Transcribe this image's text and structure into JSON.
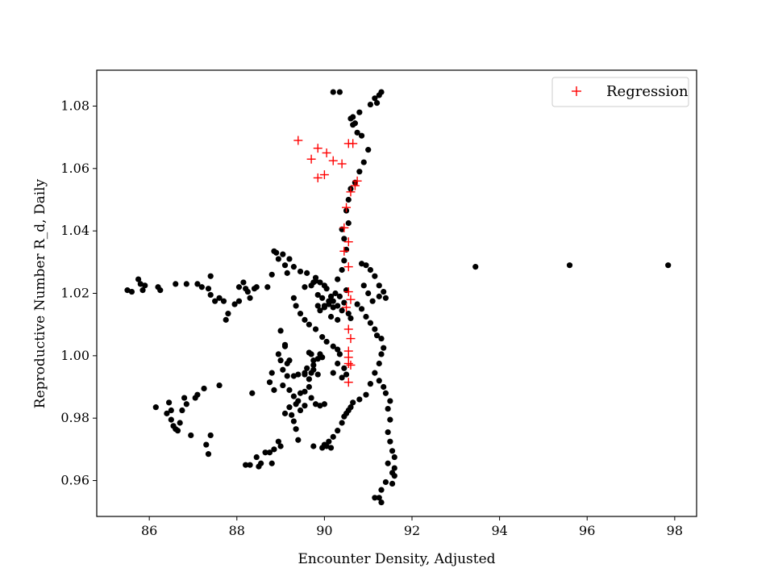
{
  "chart_data": {
    "type": "scatter",
    "xlabel": "Encounter Density, Adjusted",
    "ylabel": "Reproductive Number R_d, Daily",
    "xlim": [
      84.8,
      98.5
    ],
    "ylim": [
      0.9485,
      1.0915
    ],
    "xticks": [
      86,
      88,
      90,
      92,
      94,
      96,
      98
    ],
    "yticks": [
      0.96,
      0.98,
      1.0,
      1.02,
      1.04,
      1.06,
      1.08
    ],
    "grid": false,
    "legend": {
      "placement": "top-right",
      "entries": [
        "Regression"
      ]
    },
    "colors": {
      "data": "#000000",
      "regression": "#ff0000"
    },
    "series": [
      {
        "marker": "dot",
        "color": "#000000",
        "points": [
          [
            85.5,
            1.021
          ],
          [
            85.6,
            1.0205
          ],
          [
            85.75,
            1.0245
          ],
          [
            85.8,
            1.023
          ],
          [
            85.85,
            1.021
          ],
          [
            85.9,
            1.0225
          ],
          [
            86.2,
            1.022
          ],
          [
            86.25,
            1.021
          ],
          [
            86.15,
            0.9835
          ],
          [
            86.4,
            0.9815
          ],
          [
            86.45,
            0.985
          ],
          [
            86.5,
            0.9825
          ],
          [
            86.5,
            0.9795
          ],
          [
            86.55,
            0.9775
          ],
          [
            86.6,
            0.9765
          ],
          [
            86.65,
            0.976
          ],
          [
            86.7,
            0.9785
          ],
          [
            86.75,
            0.9825
          ],
          [
            86.8,
            0.9865
          ],
          [
            86.85,
            0.9845
          ],
          [
            86.95,
            0.9745
          ],
          [
            87.05,
            0.9865
          ],
          [
            87.1,
            0.9875
          ],
          [
            87.25,
            0.9895
          ],
          [
            87.3,
            0.9715
          ],
          [
            87.35,
            0.9685
          ],
          [
            87.4,
            0.9745
          ],
          [
            87.6,
            0.9905
          ],
          [
            86.6,
            1.023
          ],
          [
            86.85,
            1.023
          ],
          [
            87.1,
            1.023
          ],
          [
            87.2,
            1.022
          ],
          [
            87.35,
            1.0215
          ],
          [
            87.4,
            1.0195
          ],
          [
            87.5,
            1.0175
          ],
          [
            87.6,
            1.0185
          ],
          [
            87.7,
            1.0175
          ],
          [
            87.8,
            1.0135
          ],
          [
            87.75,
            1.0115
          ],
          [
            87.95,
            1.0165
          ],
          [
            88.05,
            1.0175
          ],
          [
            88.05,
            1.022
          ],
          [
            88.15,
            1.0235
          ],
          [
            88.2,
            1.0215
          ],
          [
            88.25,
            1.0205
          ],
          [
            88.3,
            1.0185
          ],
          [
            88.4,
            1.0215
          ],
          [
            88.45,
            1.022
          ],
          [
            87.4,
            1.0255
          ],
          [
            88.2,
            0.965
          ],
          [
            88.3,
            0.965
          ],
          [
            88.35,
            0.988
          ],
          [
            88.45,
            0.9675
          ],
          [
            88.5,
            0.9645
          ],
          [
            88.55,
            0.9655
          ],
          [
            88.65,
            0.969
          ],
          [
            88.75,
            0.969
          ],
          [
            88.8,
            0.9655
          ],
          [
            88.85,
            0.97
          ],
          [
            88.95,
            0.9725
          ],
          [
            89.0,
            0.971
          ],
          [
            88.7,
            1.022
          ],
          [
            88.8,
            1.026
          ],
          [
            88.85,
            1.0335
          ],
          [
            88.9,
            1.033
          ],
          [
            88.95,
            1.031
          ],
          [
            89.05,
            1.0325
          ],
          [
            89.1,
            1.029
          ],
          [
            89.15,
            1.0265
          ],
          [
            89.2,
            1.031
          ],
          [
            89.3,
            1.0285
          ],
          [
            89.45,
            1.027
          ],
          [
            89.6,
            1.0265
          ],
          [
            89.8,
            1.025
          ],
          [
            89.55,
            1.022
          ],
          [
            89.7,
            1.0225
          ],
          [
            89.75,
            1.0235
          ],
          [
            89.8,
            1.024
          ],
          [
            89.9,
            1.0235
          ],
          [
            90.0,
            1.0225
          ],
          [
            90.05,
            1.0215
          ],
          [
            89.85,
            1.0195
          ],
          [
            89.95,
            1.0185
          ],
          [
            89.85,
            1.016
          ],
          [
            90.0,
            1.016
          ],
          [
            90.1,
            1.0165
          ],
          [
            90.2,
            1.0175
          ],
          [
            89.3,
            1.0185
          ],
          [
            89.35,
            1.016
          ],
          [
            89.45,
            1.0135
          ],
          [
            89.55,
            1.0115
          ],
          [
            89.65,
            1.01
          ],
          [
            89.8,
            1.0085
          ],
          [
            89.95,
            1.006
          ],
          [
            90.05,
            1.0045
          ],
          [
            90.2,
            1.003
          ],
          [
            90.3,
            1.002
          ],
          [
            89.0,
            1.008
          ],
          [
            89.1,
            1.0035
          ],
          [
            89.2,
            0.9985
          ],
          [
            89.15,
            0.9975
          ],
          [
            89.05,
            0.9955
          ],
          [
            89.15,
            0.9935
          ],
          [
            89.3,
            0.9935
          ],
          [
            89.4,
            0.994
          ],
          [
            89.55,
            0.994
          ],
          [
            89.7,
            0.9945
          ],
          [
            89.85,
            0.994
          ],
          [
            89.75,
            0.9985
          ],
          [
            89.65,
            1.001
          ],
          [
            89.7,
            1.0005
          ],
          [
            89.75,
            0.997
          ],
          [
            89.85,
            0.999
          ],
          [
            89.9,
            1.0005
          ],
          [
            89.95,
            0.9995
          ],
          [
            89.75,
            0.9955
          ],
          [
            89.6,
            0.996
          ],
          [
            89.55,
            0.9945
          ],
          [
            89.65,
            0.9925
          ],
          [
            89.05,
            0.9905
          ],
          [
            89.2,
            0.989
          ],
          [
            89.3,
            0.987
          ],
          [
            89.35,
            0.9845
          ],
          [
            89.4,
            0.9855
          ],
          [
            89.45,
            0.988
          ],
          [
            89.55,
            0.9885
          ],
          [
            89.65,
            0.99
          ],
          [
            89.7,
            0.9865
          ],
          [
            89.8,
            0.9845
          ],
          [
            89.9,
            0.984
          ],
          [
            90.0,
            0.9845
          ],
          [
            89.2,
            0.9835
          ],
          [
            89.1,
            0.9815
          ],
          [
            89.25,
            0.981
          ],
          [
            89.3,
            0.979
          ],
          [
            89.35,
            0.9765
          ],
          [
            89.4,
            0.973
          ],
          [
            89.55,
            0.984
          ],
          [
            89.45,
            0.9825
          ],
          [
            88.8,
            0.9945
          ],
          [
            88.75,
            0.9915
          ],
          [
            88.85,
            0.989
          ],
          [
            89.0,
            0.9985
          ],
          [
            88.95,
            1.0005
          ],
          [
            89.1,
            1.003
          ],
          [
            90.2,
            0.9945
          ],
          [
            90.3,
            0.9975
          ],
          [
            90.35,
            1.0005
          ],
          [
            90.45,
            0.996
          ],
          [
            90.5,
            0.994
          ],
          [
            90.4,
            0.993
          ],
          [
            89.75,
            0.971
          ],
          [
            89.95,
            0.9705
          ],
          [
            90.0,
            0.9715
          ],
          [
            90.05,
            0.971
          ],
          [
            90.1,
            0.9725
          ],
          [
            90.15,
            0.9705
          ],
          [
            90.2,
            0.974
          ],
          [
            90.3,
            0.976
          ],
          [
            90.4,
            0.9785
          ],
          [
            90.45,
            0.9805
          ],
          [
            90.5,
            0.9815
          ],
          [
            90.55,
            0.9825
          ],
          [
            90.6,
            0.9835
          ],
          [
            90.65,
            0.985
          ],
          [
            90.8,
            0.986
          ],
          [
            90.95,
            0.9875
          ],
          [
            91.05,
            0.991
          ],
          [
            91.15,
            0.9945
          ],
          [
            91.25,
            0.9975
          ],
          [
            91.3,
            1.0005
          ],
          [
            91.35,
            1.0025
          ],
          [
            91.25,
            0.992
          ],
          [
            91.35,
            0.99
          ],
          [
            91.4,
            0.988
          ],
          [
            91.5,
            0.9855
          ],
          [
            91.45,
            0.983
          ],
          [
            91.5,
            0.9795
          ],
          [
            91.45,
            0.9755
          ],
          [
            91.5,
            0.9725
          ],
          [
            91.55,
            0.9695
          ],
          [
            91.6,
            0.9675
          ],
          [
            91.45,
            0.9655
          ],
          [
            91.55,
            0.9625
          ],
          [
            91.4,
            0.9595
          ],
          [
            91.3,
            0.957
          ],
          [
            91.25,
            0.9545
          ],
          [
            91.3,
            0.953
          ],
          [
            91.15,
            0.9545
          ],
          [
            91.6,
            0.964
          ],
          [
            91.6,
            0.9615
          ],
          [
            91.55,
            0.959
          ],
          [
            90.55,
            1.0135
          ],
          [
            90.6,
            1.012
          ],
          [
            90.4,
            1.0145
          ],
          [
            90.3,
            1.016
          ],
          [
            90.2,
            1.0155
          ],
          [
            90.1,
            1.0175
          ],
          [
            90.15,
            1.019
          ],
          [
            90.25,
            1.02
          ],
          [
            90.35,
            1.019
          ],
          [
            90.45,
            1.017
          ],
          [
            90.5,
            1.021
          ],
          [
            90.3,
            1.0245
          ],
          [
            90.4,
            1.0275
          ],
          [
            90.45,
            1.0305
          ],
          [
            90.5,
            1.034
          ],
          [
            90.45,
            1.0375
          ],
          [
            90.4,
            1.0405
          ],
          [
            90.55,
            1.0425
          ],
          [
            90.5,
            1.0465
          ],
          [
            90.55,
            1.05
          ],
          [
            90.6,
            1.0535
          ],
          [
            90.7,
            1.0555
          ],
          [
            90.8,
            1.059
          ],
          [
            90.9,
            1.062
          ],
          [
            91.0,
            1.066
          ],
          [
            90.75,
            1.0715
          ],
          [
            90.65,
            1.074
          ],
          [
            90.6,
            1.076
          ],
          [
            90.65,
            1.0765
          ],
          [
            90.7,
            1.0745
          ],
          [
            90.8,
            1.078
          ],
          [
            90.85,
            1.0705
          ],
          [
            91.15,
            1.0825
          ],
          [
            91.2,
            1.081
          ],
          [
            91.25,
            1.0835
          ],
          [
            91.3,
            1.0845
          ],
          [
            91.05,
            1.0805
          ],
          [
            90.2,
            1.0845
          ],
          [
            90.35,
            1.0845
          ],
          [
            90.85,
            1.0295
          ],
          [
            90.95,
            1.029
          ],
          [
            91.05,
            1.0275
          ],
          [
            91.15,
            1.0255
          ],
          [
            91.25,
            1.0225
          ],
          [
            91.35,
            1.0205
          ],
          [
            91.4,
            1.0185
          ],
          [
            91.25,
            1.019
          ],
          [
            91.1,
            1.0175
          ],
          [
            91.0,
            1.02
          ],
          [
            90.9,
            1.0225
          ],
          [
            90.75,
            1.0165
          ],
          [
            90.85,
            1.015
          ],
          [
            90.95,
            1.0125
          ],
          [
            91.05,
            1.0105
          ],
          [
            91.15,
            1.0085
          ],
          [
            91.2,
            1.0065
          ],
          [
            91.3,
            1.0055
          ],
          [
            90.3,
            1.0115
          ],
          [
            90.15,
            1.0125
          ],
          [
            90.0,
            1.0155
          ],
          [
            89.9,
            1.0145
          ],
          [
            93.45,
            1.0285
          ],
          [
            95.6,
            1.029
          ],
          [
            97.85,
            1.029
          ]
        ]
      },
      {
        "name": "Regression",
        "marker": "plus",
        "color": "#ff0000",
        "points": [
          [
            89.4,
            1.069
          ],
          [
            89.7,
            1.063
          ],
          [
            89.85,
            1.0665
          ],
          [
            90.05,
            1.065
          ],
          [
            90.2,
            1.0625
          ],
          [
            90.4,
            1.0615
          ],
          [
            89.85,
            1.057
          ],
          [
            90.0,
            1.058
          ],
          [
            90.55,
            1.068
          ],
          [
            90.65,
            1.068
          ],
          [
            90.75,
            1.056
          ],
          [
            90.7,
            1.0545
          ],
          [
            90.6,
            1.0525
          ],
          [
            90.5,
            1.0475
          ],
          [
            90.45,
            1.041
          ],
          [
            90.55,
            1.0365
          ],
          [
            90.45,
            1.0335
          ],
          [
            90.55,
            1.0285
          ],
          [
            90.55,
            1.0205
          ],
          [
            90.6,
            1.018
          ],
          [
            90.5,
            1.0155
          ],
          [
            90.55,
            1.0085
          ],
          [
            90.6,
            1.0055
          ],
          [
            90.55,
            1.0015
          ],
          [
            90.55,
            0.9995
          ],
          [
            90.55,
            0.9975
          ],
          [
            90.6,
            0.997
          ],
          [
            90.55,
            0.9915
          ]
        ]
      }
    ]
  }
}
